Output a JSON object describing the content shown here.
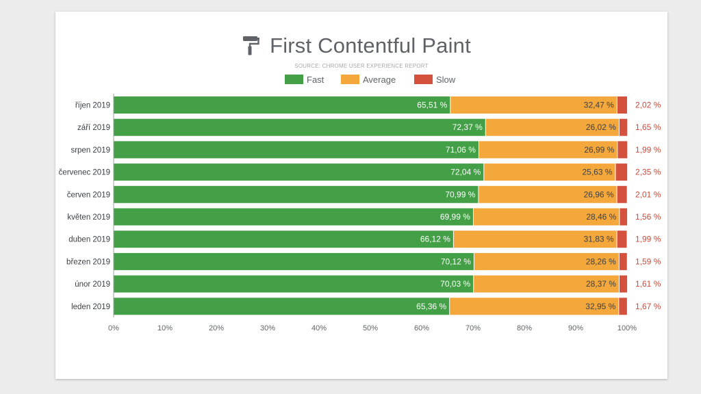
{
  "title": "First Contentful Paint",
  "subtitle": "SOURCE: CHROME USER EXPERIENCE REPORT",
  "icon": "paint-roller-icon",
  "colors": {
    "fast": "#43a047",
    "average": "#f4a73b",
    "slow": "#d4513e",
    "slow_label": "#d14836",
    "axis": "#9e9e9e"
  },
  "chart_data": {
    "type": "bar",
    "orientation": "horizontal",
    "stacked": true,
    "categories": [
      "říjen 2019",
      "září 2019",
      "srpen 2019",
      "červenec 2019",
      "červen 2019",
      "květen 2019",
      "duben 2019",
      "březen 2019",
      "únor 2019",
      "leden 2019"
    ],
    "series": [
      {
        "name": "Fast",
        "values": [
          65.51,
          72.37,
          71.06,
          72.04,
          70.99,
          69.99,
          66.12,
          70.12,
          70.03,
          65.36
        ],
        "labels": [
          "65,51 %",
          "72,37 %",
          "71,06 %",
          "72,04 %",
          "70,99 %",
          "69,99 %",
          "66,12 %",
          "70,12 %",
          "70,03 %",
          "65,36 %"
        ]
      },
      {
        "name": "Average",
        "values": [
          32.47,
          26.02,
          26.99,
          25.63,
          26.96,
          28.46,
          31.83,
          28.26,
          28.37,
          32.95
        ],
        "labels": [
          "32,47 %",
          "26,02 %",
          "26,99 %",
          "25,63 %",
          "26,96 %",
          "28,46 %",
          "31,83 %",
          "28,26 %",
          "28,37 %",
          "32,95 %"
        ]
      },
      {
        "name": "Slow",
        "values": [
          2.02,
          1.65,
          1.99,
          2.35,
          2.01,
          1.56,
          1.99,
          1.59,
          1.61,
          1.67
        ],
        "labels": [
          "2,02 %",
          "1,65 %",
          "1,99 %",
          "2,35 %",
          "2,01 %",
          "1,56 %",
          "1,99 %",
          "1,59 %",
          "1,61 %",
          "1,67 %"
        ]
      }
    ],
    "x_ticks": [
      "0%",
      "10%",
      "20%",
      "30%",
      "40%",
      "50%",
      "60%",
      "70%",
      "80%",
      "90%",
      "100%"
    ],
    "xlim": [
      0,
      100
    ],
    "legend_position": "top-center",
    "grid": false
  }
}
